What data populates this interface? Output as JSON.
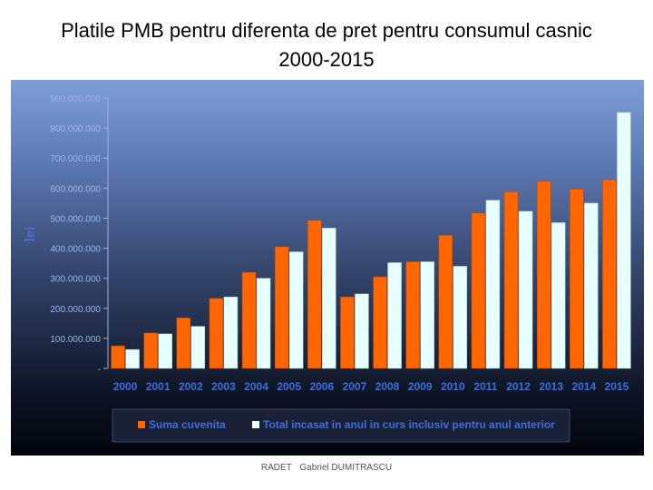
{
  "title_line1": "Platile PMB pentru diferenta de pret pentru consumul casnic",
  "title_line2": "2000-2015",
  "footer": {
    "org": "RADET",
    "author": "Gabriel DUMITRASCU"
  },
  "chart_data": {
    "type": "bar",
    "title": "Platile PMB pentru diferenta de pret pentru consumul casnic 2000-2015",
    "ylabel": "lei",
    "xlabel": "",
    "ylim": [
      0,
      900000000
    ],
    "yticks": [
      0,
      100000000,
      200000000,
      300000000,
      400000000,
      500000000,
      600000000,
      700000000,
      800000000,
      900000000
    ],
    "ytick_labels": [
      "-",
      "100.000.000",
      "200.000.000",
      "300.000.000",
      "400.000.000",
      "500.000.000",
      "600.000.000",
      "700.000.000",
      "800.000.000",
      "900.000.000"
    ],
    "categories": [
      "2000",
      "2001",
      "2002",
      "2003",
      "2004",
      "2005",
      "2006",
      "2007",
      "2008",
      "2009",
      "2010",
      "2011",
      "2012",
      "2013",
      "2014",
      "2015"
    ],
    "series": [
      {
        "name": "Suma cuvenita",
        "color": "#ff6600",
        "values": [
          75000000,
          118000000,
          168000000,
          233000000,
          320000000,
          405000000,
          493000000,
          238000000,
          305000000,
          355000000,
          443000000,
          517000000,
          588000000,
          623000000,
          597000000,
          628000000
        ]
      },
      {
        "name": "Total incasat in anul in curs inclusiv pentru anul anterior",
        "color": "#e8ffff",
        "values": [
          63000000,
          115000000,
          140000000,
          238000000,
          300000000,
          388000000,
          467000000,
          248000000,
          352000000,
          355000000,
          340000000,
          560000000,
          523000000,
          485000000,
          550000000,
          852000000
        ]
      }
    ],
    "grid": false,
    "legend": "bottom"
  }
}
